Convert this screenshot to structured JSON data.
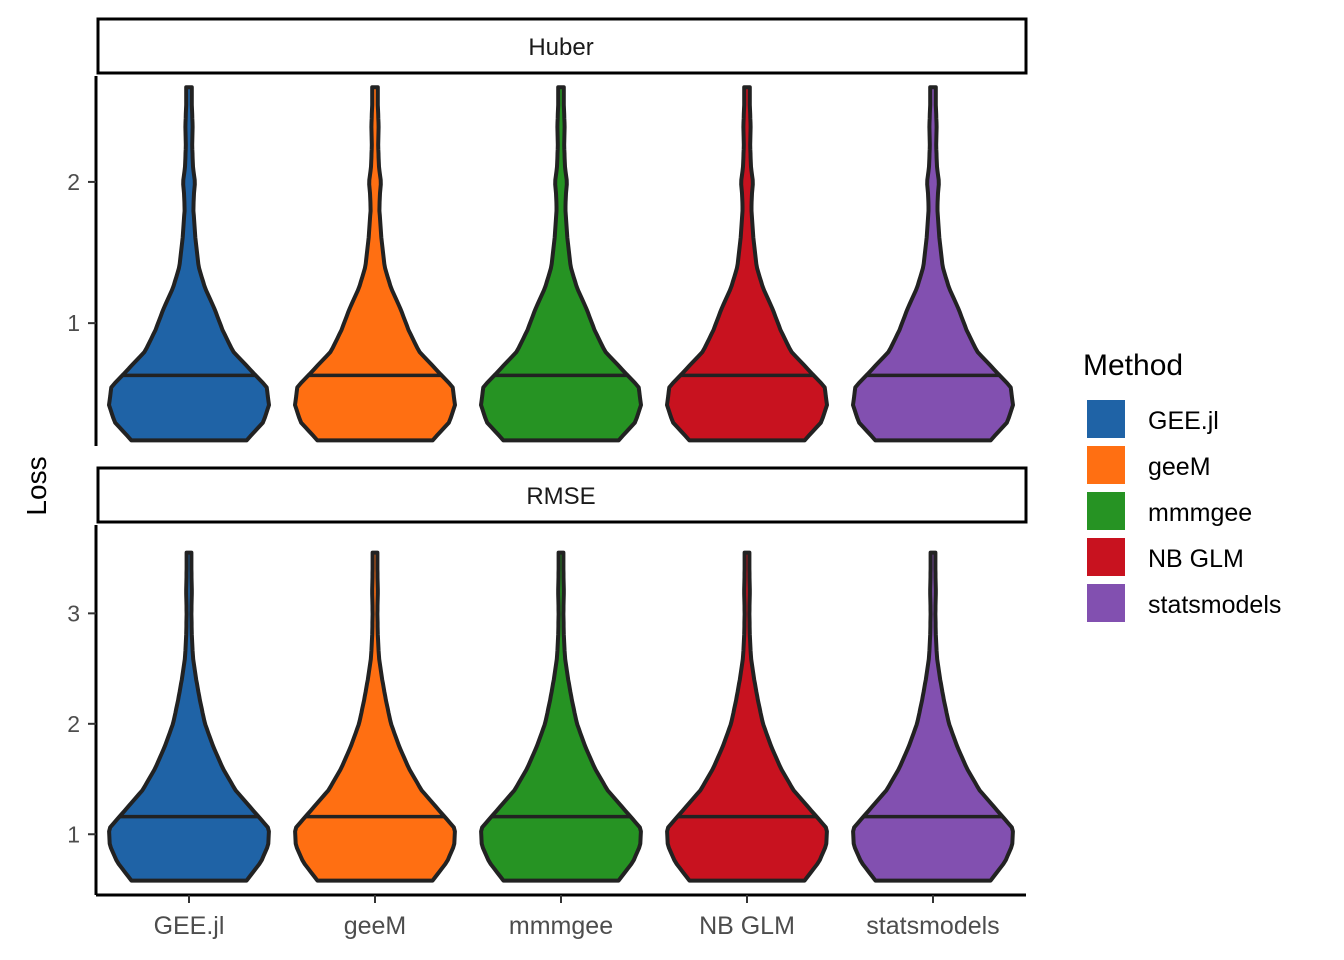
{
  "chart_data": {
    "type": "violin",
    "ylabel": "Loss",
    "xlabel": "",
    "categories": [
      "GEE.jl",
      "geeM",
      "mmmgee",
      "NB GLM",
      "statsmodels"
    ],
    "colors": {
      "GEE.jl": "#1f63a6",
      "geeM": "#ff6f12",
      "mmmgee": "#269323",
      "NB GLM": "#c8121f",
      "statsmodels": "#8250b0"
    },
    "legend": {
      "title": "Method",
      "position": "right",
      "items": [
        "GEE.jl",
        "geeM",
        "mmmgee",
        "NB GLM",
        "statsmodels"
      ]
    },
    "facets": [
      {
        "strip": "Huber",
        "ylim": [
          0.13,
          2.75
        ],
        "yticks": [
          1,
          2
        ],
        "median": 0.63,
        "min": 0.17,
        "max": 2.67,
        "density_profile": [
          [
            0.17,
            0.72
          ],
          [
            0.3,
            0.93
          ],
          [
            0.42,
            1.0
          ],
          [
            0.55,
            0.97
          ],
          [
            0.65,
            0.8
          ],
          [
            0.8,
            0.55
          ],
          [
            0.95,
            0.42
          ],
          [
            1.1,
            0.32
          ],
          [
            1.25,
            0.2
          ],
          [
            1.4,
            0.12
          ],
          [
            1.6,
            0.08
          ],
          [
            1.8,
            0.055
          ],
          [
            1.9,
            0.06
          ],
          [
            2.0,
            0.075
          ],
          [
            2.1,
            0.05
          ],
          [
            2.25,
            0.04
          ],
          [
            2.4,
            0.045
          ],
          [
            2.55,
            0.035
          ],
          [
            2.67,
            0.035
          ]
        ]
      },
      {
        "strip": "RMSE",
        "ylim": [
          0.45,
          3.8
        ],
        "yticks": [
          1,
          2,
          3
        ],
        "median": 1.16,
        "min": 0.58,
        "max": 3.55,
        "density_profile": [
          [
            0.58,
            0.72
          ],
          [
            0.75,
            0.9
          ],
          [
            0.9,
            0.99
          ],
          [
            1.05,
            1.0
          ],
          [
            1.2,
            0.82
          ],
          [
            1.4,
            0.58
          ],
          [
            1.6,
            0.42
          ],
          [
            1.8,
            0.3
          ],
          [
            2.0,
            0.2
          ],
          [
            2.2,
            0.14
          ],
          [
            2.4,
            0.09
          ],
          [
            2.6,
            0.05
          ],
          [
            2.8,
            0.035
          ],
          [
            3.0,
            0.03
          ],
          [
            3.2,
            0.035
          ],
          [
            3.4,
            0.03
          ],
          [
            3.55,
            0.03
          ]
        ]
      }
    ]
  }
}
